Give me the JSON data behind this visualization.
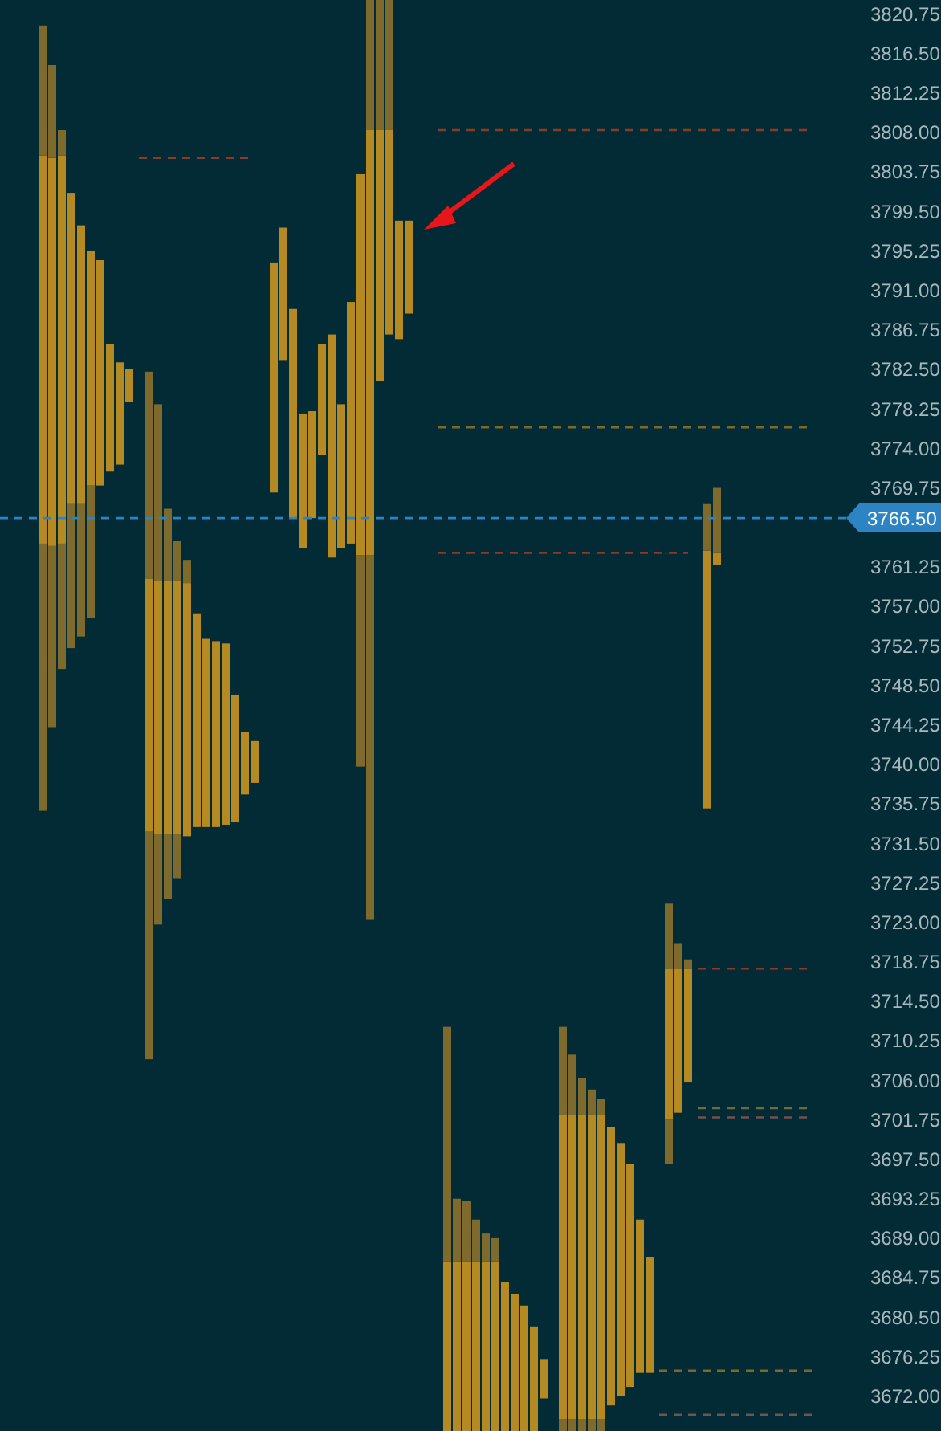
{
  "chart_data": {
    "type": "bar",
    "tick_labels": "y",
    "line_style": "dashed",
    "categories": [
      null,
      null,
      null,
      null,
      null,
      null,
      null,
      null,
      null,
      null,
      null,
      null,
      null,
      null,
      null,
      null,
      null,
      null,
      null,
      null,
      null,
      null,
      null,
      null,
      null,
      null,
      null,
      null,
      null,
      null,
      null,
      null,
      null,
      null,
      null,
      null,
      null,
      null,
      null,
      null,
      null,
      null,
      null,
      null,
      null,
      null,
      null,
      null,
      null,
      null,
      null,
      null,
      null,
      null,
      null,
      null,
      null,
      null,
      null,
      null,
      null,
      null,
      null,
      null,
      null,
      null,
      null,
      null,
      null,
      null,
      null,
      null,
      null,
      null,
      null,
      null,
      null,
      null,
      null,
      null,
      null,
      null,
      null,
      null,
      null,
      null,
      null,
      null,
      null
    ],
    "series": [
      {
        "color": "#7d6a2c",
        "base": [
          null,
          null,
          null,
          null,
          3735,
          3744,
          3750.25,
          3752.5,
          3753.75,
          3755.75,
          null,
          null,
          null,
          null,
          null,
          3708.25,
          3722.75,
          3725.5,
          3727.75,
          null,
          null,
          null,
          null,
          null,
          null,
          null,
          null,
          null,
          null,
          null,
          null,
          null,
          null,
          null,
          null,
          null,
          null,
          3739.75,
          3723.25,
          null,
          null,
          null,
          null,
          null,
          null,
          null,
          null,
          null,
          null,
          null,
          null,
          null,
          null,
          null,
          null,
          null,
          null,
          null,
          3668.25,
          3668.25,
          3668.25,
          3668.25,
          3668.25,
          null,
          null,
          null,
          null,
          null,
          null,
          3697,
          null,
          null,
          null,
          null,
          null,
          null,
          null,
          null,
          null,
          null,
          null,
          null,
          null,
          null,
          null,
          null,
          null,
          null,
          null
        ],
        "values": [
          null,
          null,
          null,
          null,
          28.75,
          19.5,
          13.5,
          15.5,
          14.25,
          14.25,
          null,
          null,
          null,
          null,
          null,
          24.5,
          9.75,
          7,
          4.75,
          null,
          null,
          null,
          null,
          null,
          null,
          null,
          null,
          null,
          null,
          null,
          null,
          null,
          null,
          null,
          null,
          null,
          null,
          22.75,
          39.25,
          null,
          null,
          null,
          null,
          null,
          null,
          null,
          null,
          null,
          null,
          null,
          null,
          null,
          null,
          null,
          null,
          null,
          null,
          null,
          1.25,
          1.25,
          1.25,
          1.25,
          1.25,
          null,
          null,
          null,
          null,
          null,
          null,
          4.75,
          null,
          null,
          null,
          null,
          null,
          null,
          null,
          null,
          null,
          null,
          null,
          null,
          null,
          null,
          null,
          null,
          null,
          null,
          null
        ]
      },
      {
        "color": "#b58a22",
        "base": [
          null,
          null,
          null,
          null,
          3763.75,
          3763.5,
          3763.75,
          3768,
          3768,
          3770,
          3770,
          3771.5,
          3772.25,
          3779,
          null,
          3732.75,
          3732.5,
          3732.5,
          3732.5,
          3732.25,
          3733.25,
          3733.25,
          3733.25,
          3733.5,
          3733.75,
          3736.75,
          3738,
          null,
          3769.25,
          3783.5,
          3766.5,
          3763.25,
          3766.5,
          3773.25,
          3762.25,
          3763.25,
          3763.75,
          3762.5,
          3762.5,
          3781.25,
          3786.25,
          3785.75,
          3788.5,
          null,
          null,
          null,
          3668.25,
          3668.25,
          3668.25,
          3668.25,
          3668.25,
          3668.25,
          3668.25,
          3668.25,
          3668.25,
          3668.25,
          3671.75,
          null,
          3669.5,
          3669.5,
          3669.5,
          3669.5,
          3669.5,
          3671,
          3672,
          3673,
          3674.5,
          3674.5,
          null,
          3701.75,
          3702.5,
          3705.75,
          null,
          3735.25,
          3761.5,
          null,
          null,
          null,
          null,
          null,
          null,
          null,
          null,
          null,
          null,
          null,
          null,
          null,
          null
        ],
        "values": [
          null,
          null,
          null,
          null,
          41.75,
          41.75,
          41.75,
          33.5,
          30,
          25.25,
          24.25,
          13.75,
          11,
          3.5,
          null,
          27.25,
          27.25,
          27.25,
          27.25,
          27.25,
          23,
          20.25,
          20,
          19.5,
          13.75,
          6.75,
          4.5,
          null,
          24.75,
          14.25,
          22.5,
          14.5,
          11.5,
          12,
          24,
          15.5,
          26,
          41,
          45.75,
          27,
          22,
          12.75,
          10,
          null,
          null,
          null,
          18.25,
          18.25,
          18.25,
          18.25,
          18.25,
          18.25,
          16,
          14.75,
          13.5,
          11.25,
          4.25,
          null,
          32.75,
          32.75,
          32.75,
          32.75,
          32.75,
          30,
          27.25,
          24,
          16.5,
          12.5,
          null,
          16.25,
          15.5,
          12.25,
          null,
          27.75,
          1.25,
          null,
          null,
          null,
          null,
          null,
          null,
          null,
          null,
          null,
          null,
          null,
          null,
          null,
          null
        ]
      },
      {
        "color": "#7d6a2c",
        "base": [
          null,
          null,
          null,
          null,
          3805.5,
          3805.25,
          3805.5,
          null,
          null,
          null,
          null,
          null,
          null,
          null,
          null,
          3760,
          3759.75,
          3759.75,
          3759.75,
          3759.5,
          null,
          null,
          null,
          null,
          null,
          null,
          null,
          null,
          null,
          null,
          null,
          null,
          null,
          null,
          null,
          null,
          null,
          null,
          3808.25,
          3808.25,
          3808.25,
          null,
          null,
          null,
          null,
          null,
          3686.5,
          3686.5,
          3686.5,
          3686.5,
          3686.5,
          3686.5,
          null,
          null,
          null,
          null,
          null,
          null,
          3702.25,
          3702.25,
          3702.25,
          3702.25,
          3702.25,
          null,
          null,
          null,
          null,
          null,
          null,
          3718,
          3718,
          3718,
          null,
          3763,
          3762.75,
          null,
          null,
          null,
          null,
          null,
          null,
          null,
          null,
          null,
          null,
          null,
          null,
          null,
          null
        ],
        "values": [
          null,
          null,
          null,
          null,
          14,
          10,
          2.75,
          null,
          null,
          null,
          null,
          null,
          null,
          null,
          null,
          22.25,
          19,
          7.75,
          4.25,
          2.5,
          null,
          null,
          null,
          null,
          null,
          null,
          null,
          null,
          null,
          null,
          null,
          null,
          null,
          null,
          null,
          null,
          null,
          null,
          14,
          14,
          14,
          null,
          null,
          null,
          null,
          null,
          25.25,
          6.75,
          6.5,
          4.5,
          3,
          2.5,
          null,
          null,
          null,
          null,
          null,
          null,
          9.5,
          6.5,
          4,
          2.75,
          1.75,
          null,
          null,
          null,
          null,
          null,
          null,
          7,
          2.75,
          1,
          null,
          5,
          7,
          null,
          null,
          null,
          null,
          null,
          null,
          null,
          null,
          null,
          null,
          null,
          null,
          null,
          null
        ]
      },
      {
        "type": "line",
        "color": "#8c3a24",
        "values": [
          null,
          null,
          null,
          null,
          null,
          null,
          null,
          null,
          null,
          null,
          null,
          null,
          null,
          null,
          3805.25,
          3805.25,
          3805.25,
          3805.25,
          3805.25,
          3805.25,
          3805.25,
          3805.25,
          3805.25,
          3805.25,
          3805.25,
          3805.25,
          3805.25,
          null,
          null,
          null,
          null,
          null,
          null,
          null,
          null,
          null,
          null,
          null,
          null,
          null,
          null,
          null,
          null,
          null,
          null,
          null,
          null,
          null,
          null,
          null,
          null,
          null,
          null,
          null,
          null,
          null,
          null,
          null,
          null,
          null,
          null,
          null,
          null,
          null,
          null,
          null,
          null,
          null,
          null,
          null,
          null,
          null,
          null,
          null,
          null,
          null,
          null,
          null,
          null,
          null,
          null,
          null,
          null,
          null,
          null,
          null,
          null,
          null,
          null
        ]
      },
      {
        "type": "line",
        "color": "#8c3a24",
        "values": [
          null,
          null,
          null,
          null,
          null,
          null,
          null,
          null,
          null,
          null,
          null,
          null,
          null,
          null,
          null,
          null,
          null,
          null,
          null,
          null,
          null,
          null,
          null,
          null,
          null,
          null,
          null,
          null,
          null,
          null,
          null,
          null,
          null,
          null,
          null,
          null,
          null,
          null,
          null,
          null,
          null,
          null,
          null,
          null,
          null,
          3808.25,
          3808.25,
          3808.25,
          3808.25,
          3808.25,
          3808.25,
          3808.25,
          3808.25,
          3808.25,
          3808.25,
          3808.25,
          3808.25,
          3808.25,
          3808.25,
          3808.25,
          3808.25,
          3808.25,
          3808.25,
          3808.25,
          3808.25,
          3808.25,
          3808.25,
          3808.25,
          3808.25,
          3808.25,
          3808.25,
          3808.25,
          3808.25,
          3808.25,
          3808.25,
          3808.25,
          3808.25,
          3808.25,
          3808.25,
          3808.25,
          3808.25,
          3808.25,
          3808.25,
          3808.25,
          3808.25,
          null,
          null,
          null,
          null
        ]
      },
      {
        "type": "line",
        "color": "#7a6a2a",
        "values": [
          null,
          null,
          null,
          null,
          null,
          null,
          null,
          null,
          null,
          null,
          null,
          null,
          null,
          null,
          null,
          null,
          null,
          null,
          null,
          null,
          null,
          null,
          null,
          null,
          null,
          null,
          null,
          null,
          null,
          null,
          null,
          null,
          null,
          null,
          null,
          null,
          null,
          null,
          null,
          null,
          null,
          null,
          null,
          null,
          null,
          3776.25,
          3776.25,
          3776.25,
          3776.25,
          3776.25,
          3776.25,
          3776.25,
          3776.25,
          3776.25,
          3776.25,
          3776.25,
          3776.25,
          3776.25,
          3776.25,
          3776.25,
          3776.25,
          3776.25,
          3776.25,
          3776.25,
          3776.25,
          3776.25,
          3776.25,
          3776.25,
          3776.25,
          3776.25,
          3776.25,
          3776.25,
          3776.25,
          3776.25,
          3776.25,
          3776.25,
          3776.25,
          3776.25,
          3776.25,
          3776.25,
          3776.25,
          3776.25,
          3776.25,
          3776.25,
          3776.25,
          null,
          null,
          null,
          null
        ]
      },
      {
        "type": "line",
        "color": "#8c3a24",
        "values": [
          null,
          null,
          null,
          null,
          null,
          null,
          null,
          null,
          null,
          null,
          null,
          null,
          null,
          null,
          null,
          null,
          null,
          null,
          null,
          null,
          null,
          null,
          null,
          null,
          null,
          null,
          null,
          null,
          null,
          null,
          null,
          null,
          null,
          null,
          null,
          null,
          null,
          null,
          null,
          null,
          null,
          null,
          null,
          null,
          null,
          3762.75,
          3762.75,
          3762.75,
          3762.75,
          3762.75,
          3762.75,
          3762.75,
          3762.75,
          3762.75,
          3762.75,
          3762.75,
          3762.75,
          3762.75,
          3762.75,
          3762.75,
          3762.75,
          3762.75,
          3762.75,
          3762.75,
          3762.75,
          3762.75,
          3762.75,
          3762.75,
          3762.75,
          3762.75,
          3762.75,
          3762.75,
          null,
          null,
          null,
          null,
          null,
          null,
          null,
          null,
          null,
          null,
          null,
          null,
          null,
          null,
          null,
          null,
          null
        ]
      },
      {
        "type": "line",
        "color": "#8c3a24",
        "values": [
          null,
          null,
          null,
          null,
          null,
          null,
          null,
          null,
          null,
          null,
          null,
          null,
          null,
          null,
          null,
          null,
          null,
          null,
          null,
          null,
          null,
          null,
          null,
          null,
          null,
          null,
          null,
          null,
          null,
          null,
          null,
          null,
          null,
          null,
          null,
          null,
          null,
          null,
          null,
          null,
          null,
          null,
          null,
          null,
          null,
          null,
          null,
          null,
          null,
          null,
          null,
          null,
          null,
          null,
          null,
          null,
          null,
          null,
          null,
          null,
          null,
          null,
          null,
          null,
          null,
          null,
          null,
          null,
          null,
          null,
          null,
          null,
          3718,
          3718,
          3718,
          3718,
          3718,
          3718,
          3718,
          3718,
          3718,
          3718,
          3718,
          3718,
          3718,
          null,
          null,
          null,
          null
        ]
      },
      {
        "type": "line",
        "color": "#6e6a3a",
        "values": [
          null,
          null,
          null,
          null,
          null,
          null,
          null,
          null,
          null,
          null,
          null,
          null,
          null,
          null,
          null,
          null,
          null,
          null,
          null,
          null,
          null,
          null,
          null,
          null,
          null,
          null,
          null,
          null,
          null,
          null,
          null,
          null,
          null,
          null,
          null,
          null,
          null,
          null,
          null,
          null,
          null,
          null,
          null,
          null,
          null,
          null,
          null,
          null,
          null,
          null,
          null,
          null,
          null,
          null,
          null,
          null,
          null,
          null,
          null,
          null,
          null,
          null,
          null,
          null,
          null,
          null,
          null,
          null,
          null,
          null,
          null,
          null,
          3703,
          3703,
          3703,
          3703,
          3703,
          3703,
          3703,
          3703,
          3703,
          3703,
          3703,
          3703,
          3703,
          null,
          null,
          null,
          null
        ]
      },
      {
        "type": "line",
        "color": "#7a4f48",
        "values": [
          null,
          null,
          null,
          null,
          null,
          null,
          null,
          null,
          null,
          null,
          null,
          null,
          null,
          null,
          null,
          null,
          null,
          null,
          null,
          null,
          null,
          null,
          null,
          null,
          null,
          null,
          null,
          null,
          null,
          null,
          null,
          null,
          null,
          null,
          null,
          null,
          null,
          null,
          null,
          null,
          null,
          null,
          null,
          null,
          null,
          null,
          null,
          null,
          null,
          null,
          null,
          null,
          null,
          null,
          null,
          null,
          null,
          null,
          null,
          null,
          null,
          null,
          null,
          null,
          null,
          null,
          null,
          null,
          null,
          null,
          null,
          null,
          3702,
          3702,
          3702,
          3702,
          3702,
          3702,
          3702,
          3702,
          3702,
          3702,
          3702,
          3702,
          3702,
          null,
          null,
          null,
          null
        ]
      },
      {
        "type": "line",
        "color": "#7a6a2a",
        "values": [
          null,
          null,
          null,
          null,
          null,
          null,
          null,
          null,
          null,
          null,
          null,
          null,
          null,
          null,
          null,
          null,
          null,
          null,
          null,
          null,
          null,
          null,
          null,
          null,
          null,
          null,
          null,
          null,
          null,
          null,
          null,
          null,
          null,
          null,
          null,
          null,
          null,
          null,
          null,
          null,
          null,
          null,
          null,
          null,
          null,
          null,
          null,
          null,
          null,
          null,
          null,
          null,
          null,
          null,
          null,
          null,
          null,
          null,
          null,
          null,
          null,
          null,
          null,
          null,
          null,
          null,
          null,
          null,
          3674.75,
          3674.75,
          3674.75,
          3674.75,
          3674.75,
          3674.75,
          3674.75,
          3674.75,
          3674.75,
          3674.75,
          3674.75,
          3674.75,
          3674.75,
          3674.75,
          3674.75,
          3674.75,
          3674.75,
          null,
          null,
          null,
          null
        ]
      },
      {
        "type": "line",
        "color": "#6d5552",
        "values": [
          null,
          null,
          null,
          null,
          null,
          null,
          null,
          null,
          null,
          null,
          null,
          null,
          null,
          null,
          null,
          null,
          null,
          null,
          null,
          null,
          null,
          null,
          null,
          null,
          null,
          null,
          null,
          null,
          null,
          null,
          null,
          null,
          null,
          null,
          null,
          null,
          null,
          null,
          null,
          null,
          null,
          null,
          null,
          null,
          null,
          null,
          null,
          null,
          null,
          null,
          null,
          null,
          null,
          null,
          null,
          null,
          null,
          null,
          null,
          null,
          null,
          null,
          null,
          null,
          null,
          null,
          null,
          null,
          3670,
          3670,
          3670,
          3670,
          3670,
          3670,
          3670,
          3670,
          3670,
          3670,
          3670,
          3670,
          3670,
          3670,
          3670,
          3670,
          3670,
          null,
          null,
          null,
          null
        ]
      }
    ],
    "ref_lines": [
      {
        "axis": "y",
        "value": 3766.5,
        "label": "3766.50",
        "color": "#2d84c4",
        "line_style": "dashed"
      }
    ],
    "ylim": [
      3668.25,
      3822.25
    ],
    "yticks": [
      {
        "value": 3820.75,
        "label": "3820.75"
      },
      {
        "value": 3816.5,
        "label": "3816.50"
      },
      {
        "value": 3812.25,
        "label": "3812.25"
      },
      {
        "value": 3808,
        "label": "3808.00"
      },
      {
        "value": 3803.75,
        "label": "3803.75"
      },
      {
        "value": 3799.5,
        "label": "3799.50"
      },
      {
        "value": 3795.25,
        "label": "3795.25"
      },
      {
        "value": 3791,
        "label": "3791.00"
      },
      {
        "value": 3786.75,
        "label": "3786.75"
      },
      {
        "value": 3782.5,
        "label": "3782.50"
      },
      {
        "value": 3778.25,
        "label": "3778.25"
      },
      {
        "value": 3774,
        "label": "3774.00"
      },
      {
        "value": 3769.75,
        "label": "3769.75"
      },
      {
        "value": 3761.25,
        "label": "3761.25"
      },
      {
        "value": 3757,
        "label": "3757.00"
      },
      {
        "value": 3752.75,
        "label": "3752.75"
      },
      {
        "value": 3748.5,
        "label": "3748.50"
      },
      {
        "value": 3744.25,
        "label": "3744.25"
      },
      {
        "value": 3740,
        "label": "3740.00"
      },
      {
        "value": 3735.75,
        "label": "3735.75"
      },
      {
        "value": 3731.5,
        "label": "3731.50"
      },
      {
        "value": 3727.25,
        "label": "3727.25"
      },
      {
        "value": 3723,
        "label": "3723.00"
      },
      {
        "value": 3718.75,
        "label": "3718.75"
      },
      {
        "value": 3714.5,
        "label": "3714.50"
      },
      {
        "value": 3710.25,
        "label": "3710.25"
      },
      {
        "value": 3706,
        "label": "3706.00"
      },
      {
        "value": 3701.75,
        "label": "3701.75"
      },
      {
        "value": 3697.5,
        "label": "3697.50"
      },
      {
        "value": 3693.25,
        "label": "3693.25"
      },
      {
        "value": 3689,
        "label": "3689.00"
      },
      {
        "value": 3684.75,
        "label": "3684.75"
      },
      {
        "value": 3680.5,
        "label": "3680.50"
      },
      {
        "value": 3676.25,
        "label": "3676.25"
      },
      {
        "value": 3672,
        "label": "3672.00"
      }
    ]
  }
}
